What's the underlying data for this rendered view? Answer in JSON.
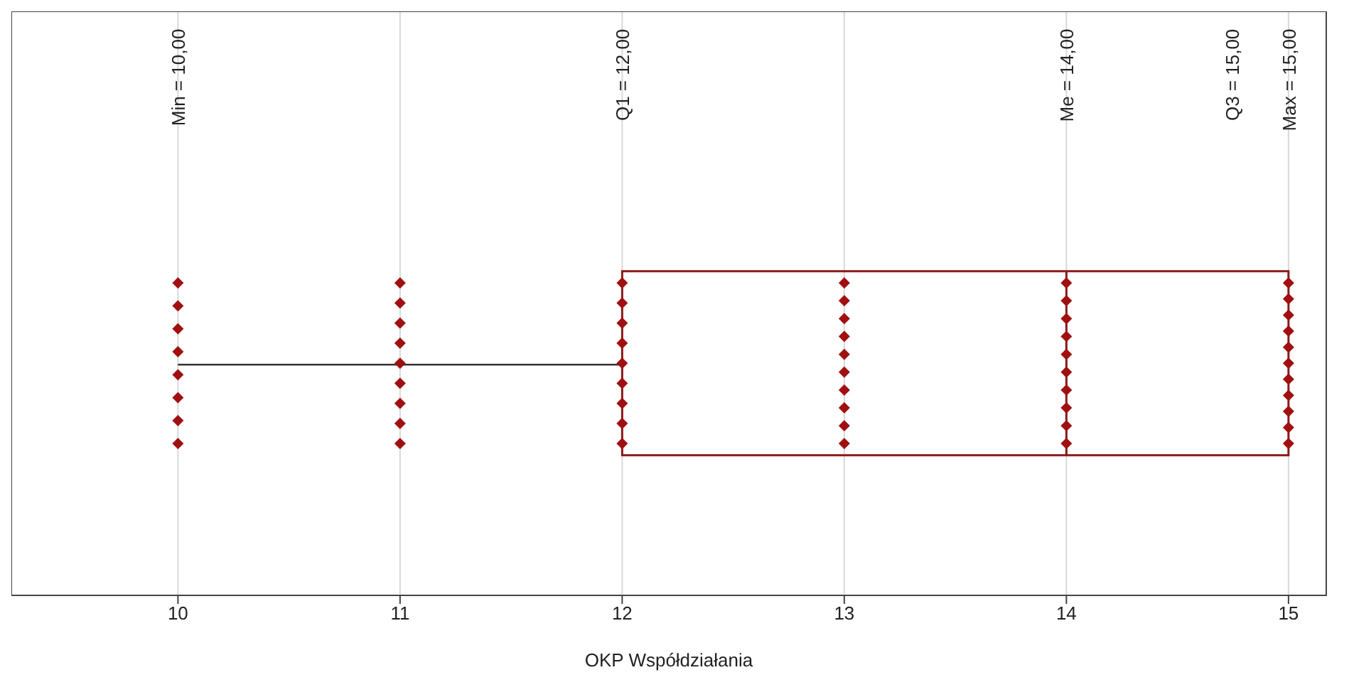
{
  "chart_data": {
    "type": "box",
    "orientation": "horizontal",
    "categories": [
      null
    ],
    "xlabel": "OKP Współdziałania",
    "xlim": [
      9.25,
      15.17
    ],
    "xticks": [
      10,
      11,
      12,
      13,
      14,
      15
    ],
    "grid": "x",
    "tick_labels": "x",
    "marker": "diamond",
    "boxes": [
      {
        "low": 10,
        "q1": 12,
        "median": 14,
        "q3": 15,
        "high": 15
      }
    ],
    "color": "#8b1a1a",
    "series": [
      {
        "type": "scatter",
        "color": "#a01010",
        "x": [
          null,
          null,
          null,
          null,
          null,
          null,
          null,
          null,
          null,
          null,
          null,
          null,
          null,
          null,
          null,
          null,
          null,
          null,
          null,
          null,
          null,
          null,
          null,
          null,
          null,
          null,
          null,
          null,
          null,
          null,
          null,
          null,
          null,
          null,
          null,
          null,
          null,
          null,
          null,
          null,
          null,
          null,
          null,
          null,
          null,
          null,
          null,
          null,
          null,
          null,
          null,
          null,
          null,
          null,
          null,
          null,
          null
        ],
        "values": [
          10,
          10,
          10,
          10,
          10,
          10,
          10,
          10,
          11,
          11,
          11,
          11,
          11,
          11,
          11,
          11,
          11,
          12,
          12,
          12,
          12,
          12,
          12,
          12,
          12,
          12,
          13,
          13,
          13,
          13,
          13,
          13,
          13,
          13,
          13,
          13,
          14,
          14,
          14,
          14,
          14,
          14,
          14,
          14,
          14,
          14,
          15,
          15,
          15,
          15,
          15,
          15,
          15,
          15,
          15,
          15,
          15
        ]
      }
    ],
    "annotations": [
      "Min = 10,00",
      "Q1 = 12,00",
      "Me = 14,00",
      "Q3 = 15,00",
      "Max = 15,00"
    ]
  }
}
